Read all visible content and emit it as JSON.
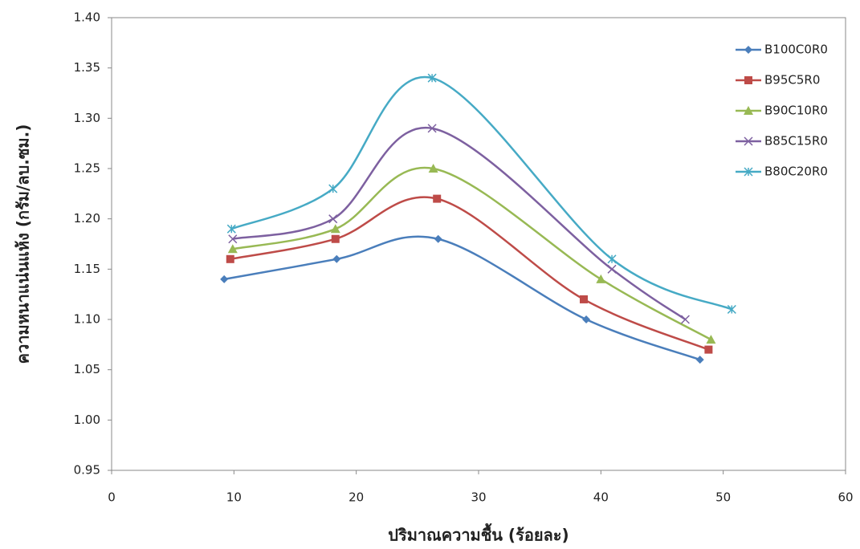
{
  "chart_data": {
    "type": "scatter-smooth",
    "xlabel": "ปริมาณความชื้น  (ร้อยละ)",
    "ylabel": "ความหนาแน่นแห้ง (กรัม/ลบ.ซม.)",
    "xlim": [
      0,
      60
    ],
    "xticks": [
      0,
      10,
      20,
      30,
      40,
      50,
      60
    ],
    "ylim": [
      0.95,
      1.4
    ],
    "yticks": [
      {
        "value": 0.95,
        "label": "0.95"
      },
      {
        "value": 1.0,
        "label": "1.00"
      },
      {
        "value": 1.05,
        "label": "1.05"
      },
      {
        "value": 1.1,
        "label": "1.10"
      },
      {
        "value": 1.15,
        "label": "1.15"
      },
      {
        "value": 1.2,
        "label": "1.20"
      },
      {
        "value": 1.25,
        "label": "1.25"
      },
      {
        "value": 1.3,
        "label": "1.30"
      },
      {
        "value": 1.35,
        "label": "1.35"
      },
      {
        "value": 1.4,
        "label": "1.40"
      }
    ],
    "legend": "right",
    "series": [
      {
        "name": "B100C0R0",
        "color": "#4a7ebb",
        "marker": "diamond",
        "x": [
          9.2,
          18.4,
          26.7,
          38.8,
          48.1
        ],
        "values": [
          1.14,
          1.16,
          1.18,
          1.1,
          1.06
        ]
      },
      {
        "name": "B95C5R0",
        "color": "#be4b48",
        "marker": "square",
        "x": [
          9.7,
          18.3,
          26.6,
          38.6,
          48.8
        ],
        "values": [
          1.16,
          1.18,
          1.22,
          1.12,
          1.07
        ]
      },
      {
        "name": "B90C10R0",
        "color": "#98b954",
        "marker": "triangle",
        "x": [
          9.9,
          18.3,
          26.3,
          40.0,
          49.0
        ],
        "values": [
          1.17,
          1.19,
          1.25,
          1.14,
          1.08
        ]
      },
      {
        "name": "B85C15R0",
        "color": "#7d60a0",
        "marker": "x",
        "x": [
          9.9,
          18.1,
          26.2,
          40.9,
          46.9
        ],
        "values": [
          1.18,
          1.2,
          1.29,
          1.15,
          1.1
        ]
      },
      {
        "name": "B80C20R0",
        "color": "#46aac5",
        "marker": "star",
        "x": [
          9.8,
          18.1,
          26.2,
          40.9,
          50.7
        ],
        "values": [
          1.19,
          1.23,
          1.34,
          1.16,
          1.11
        ]
      }
    ]
  }
}
